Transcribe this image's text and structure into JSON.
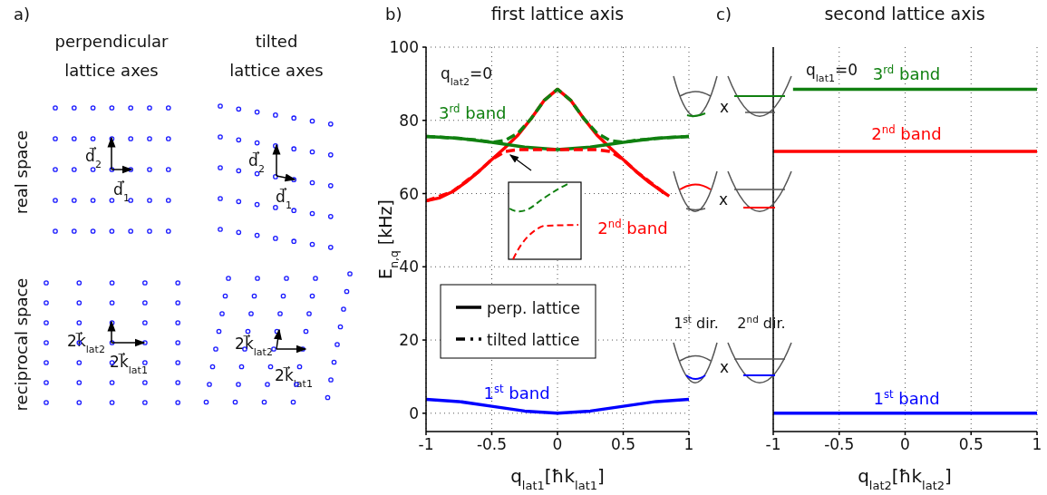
{
  "chart_data": [
    {
      "type": "other",
      "annotations": [
        "a)",
        "perpendicular lattice axes",
        "tilted lattice axes",
        "real space",
        "reciprocal space",
        "d⃗$_{2}$",
        "d⃗$_{1}$",
        "d⃗$_{2}$",
        "d⃗$_{1}$",
        "2k⃗$_{lat2}$",
        "2k⃗$_{lat1}$",
        "2k⃗$_{lat2}$",
        "2k⃗$_{lat1}$"
      ]
    },
    {
      "type": "line",
      "title": "first lattice axis",
      "xlabel": "q$_{lat1}$[ħk$_{lat1}$]",
      "ylabel": "E$_{n,q}$  [kHz]",
      "xlim": [
        -1,
        1
      ],
      "xticks": [
        -1,
        -0.5,
        0,
        0.5,
        1
      ],
      "ylim": [
        -5,
        100
      ],
      "yticks": [
        0,
        20,
        40,
        60,
        80,
        100
      ],
      "grid": true,
      "legend": "bottom left",
      "line_style": "solid",
      "annotations": [
        "b)",
        "q$_{lat2}$=0",
        "perp. lattice",
        "tilted lattice"
      ],
      "series": [
        {
          "name": "1$^{st}$ band",
          "color": "#0000ff",
          "x": [
            -1,
            -0.75,
            -0.5,
            -0.25,
            0,
            0.25,
            0.5,
            0.75,
            1
          ],
          "values": [
            3.8,
            3.2,
            1.9,
            0.6,
            0,
            0.6,
            1.9,
            3.2,
            3.8
          ]
        },
        {
          "name": "2$^{nd}$ band",
          "color": "#ff0000",
          "x": [
            -1,
            -0.9,
            -0.8,
            -0.7,
            -0.6,
            -0.5,
            -0.4,
            -0.3,
            -0.2,
            -0.1,
            0,
            0.1,
            0.2,
            0.3,
            0.4,
            0.5,
            0.6,
            0.7,
            0.8,
            0.85
          ],
          "values": [
            58,
            58.8,
            60.5,
            63,
            66,
            69.3,
            72.5,
            76,
            80.5,
            85.5,
            88.5,
            85.5,
            80.5,
            76,
            72.5,
            69.3,
            66,
            63,
            60.5,
            59.3
          ]
        },
        {
          "name": "3$^{rd}$ band",
          "color": "#108010",
          "x": [
            -1,
            -0.75,
            -0.5,
            -0.25,
            0,
            0.25,
            0.5,
            0.75,
            1
          ],
          "values": [
            75.6,
            75.1,
            74,
            72.7,
            72,
            72.7,
            74,
            75.1,
            75.6
          ]
        },
        {
          "color": "#ff0000",
          "line_style": "dashed",
          "x": [
            -1,
            -0.8,
            -0.6,
            -0.5,
            -0.4,
            -0.3,
            -0.2,
            0,
            0.2,
            0.3,
            0.4,
            0.5,
            0.6,
            0.8
          ],
          "values": [
            58,
            60.5,
            66,
            69.3,
            71.5,
            72,
            72,
            72,
            72,
            72,
            71.5,
            69.3,
            66,
            60.5
          ]
        },
        {
          "color": "#108010",
          "line_style": "dashed",
          "x": [
            -1,
            -0.8,
            -0.6,
            -0.5,
            -0.4,
            -0.3,
            -0.2,
            -0.1,
            0,
            0.1,
            0.2,
            0.3,
            0.4,
            0.5,
            0.6,
            0.8,
            1
          ],
          "values": [
            75.6,
            75.2,
            74.6,
            74,
            74.5,
            76.5,
            80.5,
            85.5,
            88.5,
            85.5,
            80.5,
            76.5,
            74.5,
            74,
            74.6,
            75.2,
            75.6
          ]
        }
      ]
    },
    {
      "type": "line",
      "title": "second lattice axis",
      "xlabel": "q$_{lat2}$[ħk$_{lat2}$]",
      "xlim": [
        -1,
        1
      ],
      "xticks": [
        -1,
        -0.5,
        0,
        0.5,
        1
      ],
      "ylim": [
        -5,
        100
      ],
      "yticks": [
        0,
        20,
        40,
        60,
        80,
        100
      ],
      "grid": true,
      "tick_labels": "x",
      "line_style": "solid",
      "annotations": [
        "c)",
        "q$_{lat1}$=0",
        "x",
        "x",
        "x",
        "1$^{st}$ dir.",
        "2$^{nd}$ dir."
      ],
      "series": [
        {
          "name": "1$^{st}$ band",
          "color": "#0000ff",
          "x": [
            -1,
            1
          ],
          "values": [
            0,
            0
          ]
        },
        {
          "name": "2$^{nd}$ band",
          "color": "#ff0000",
          "x": [
            -1,
            1
          ],
          "values": [
            71.5,
            71.5
          ]
        },
        {
          "name": "3$^{rd}$ band",
          "color": "#108010",
          "x": [
            -0.85,
            1
          ],
          "values": [
            88.5,
            88.5
          ]
        }
      ]
    }
  ]
}
